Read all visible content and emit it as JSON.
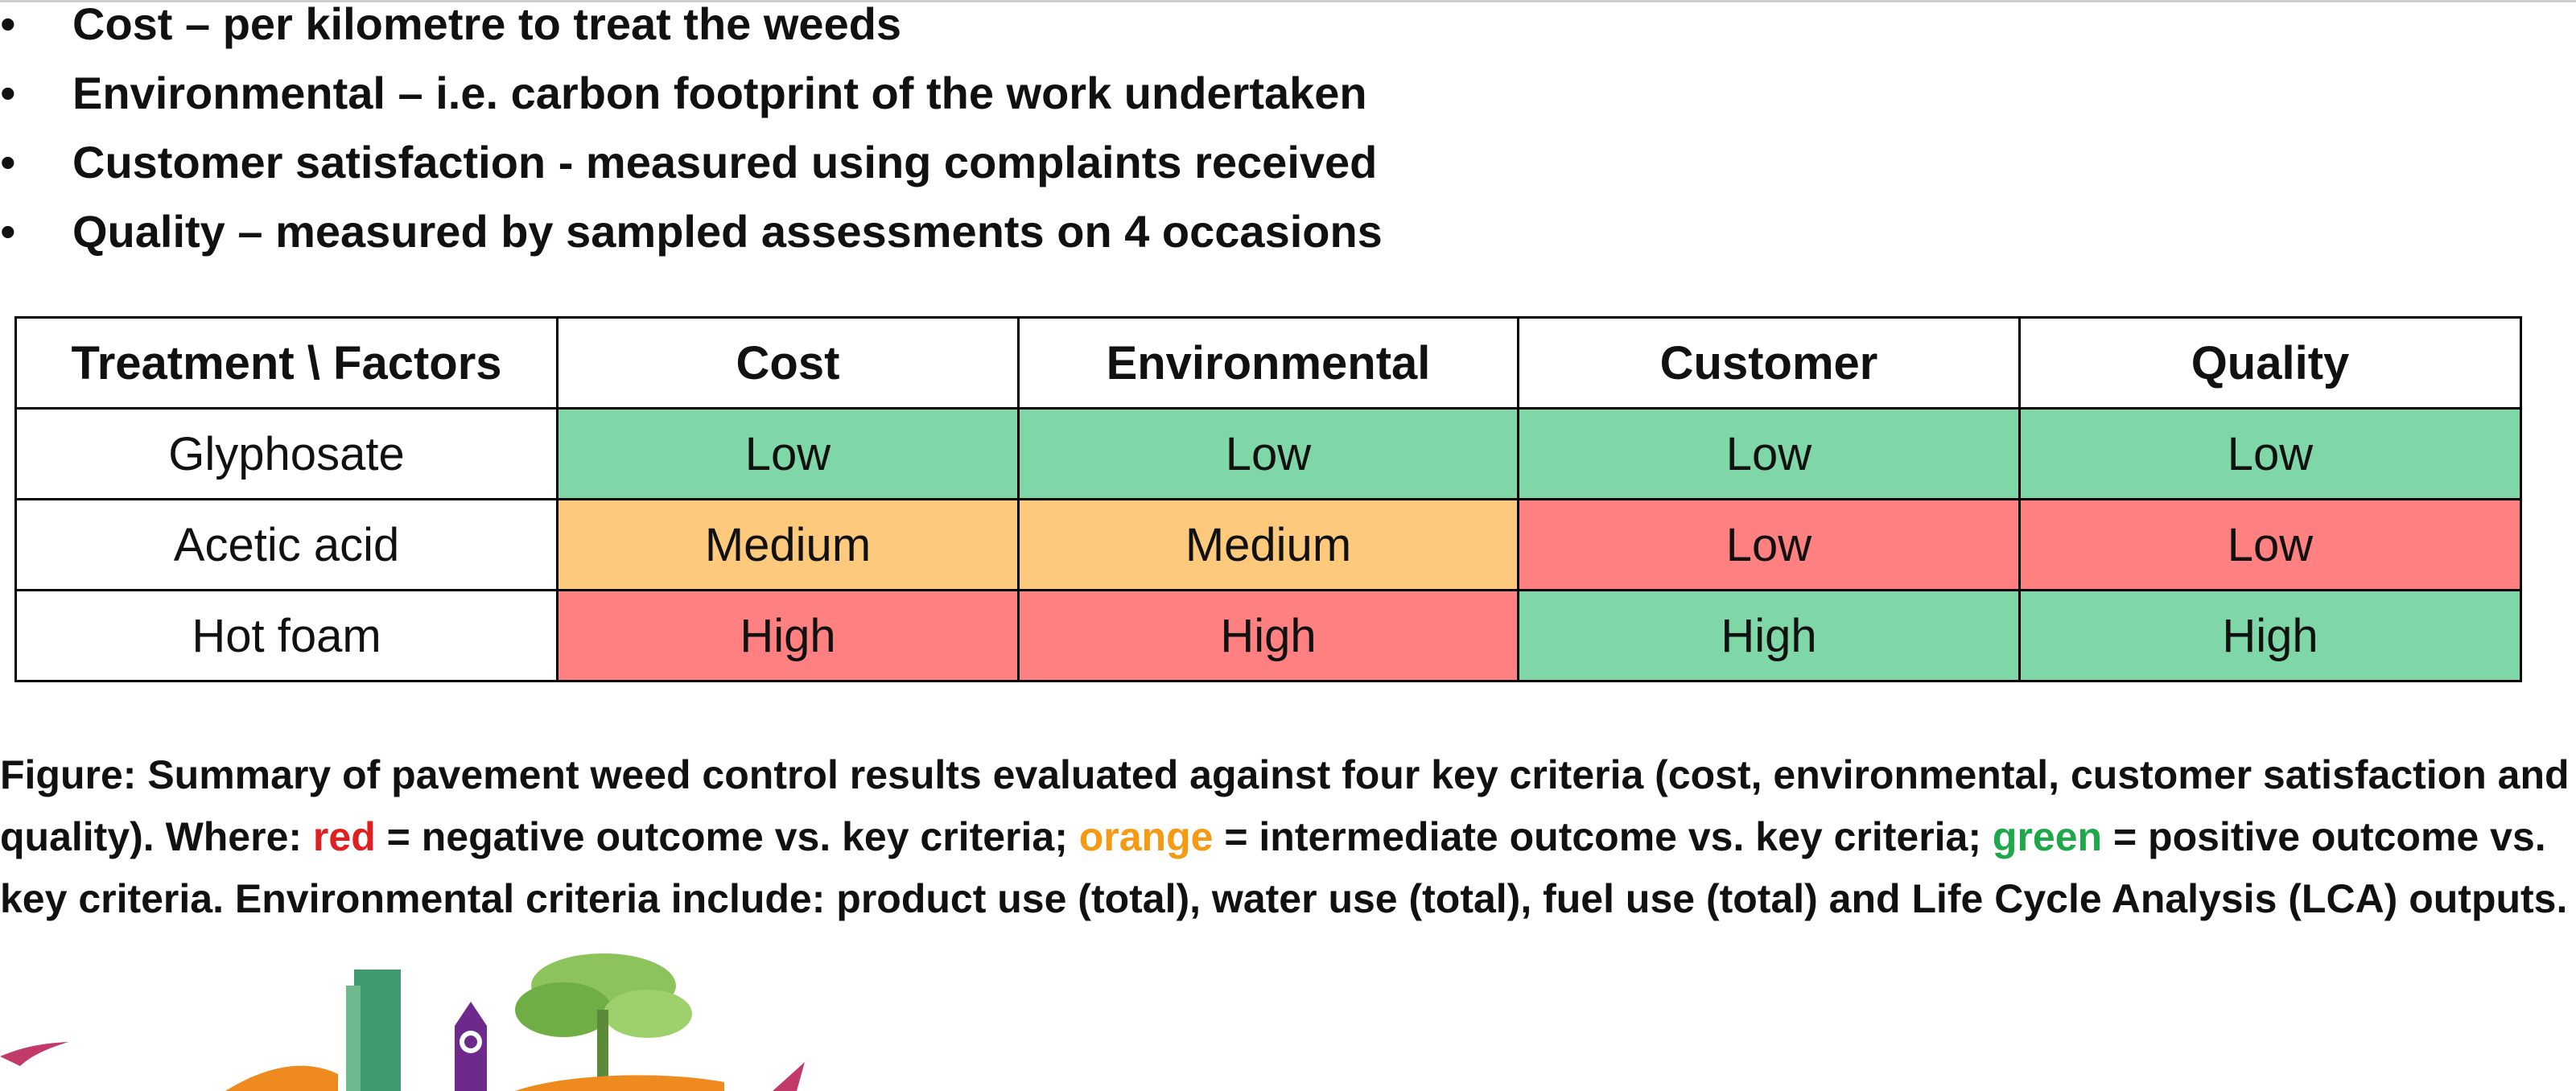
{
  "bullets": [
    "Cost – per kilometre to treat the weeds",
    "Environmental – i.e. carbon footprint of the work undertaken",
    "Customer satisfaction - measured using complaints received",
    "Quality – measured by sampled assessments on 4 occasions"
  ],
  "bullet_symbol": "•",
  "table": {
    "headers": [
      "Treatment \\ Factors",
      "Cost",
      "Environmental",
      "Customer",
      "Quality"
    ],
    "rows": [
      {
        "treatment": "Glyphosate",
        "cells": [
          {
            "value": "Low",
            "outcome": "positive"
          },
          {
            "value": "Low",
            "outcome": "positive"
          },
          {
            "value": "Low",
            "outcome": "positive"
          },
          {
            "value": "Low",
            "outcome": "positive"
          }
        ]
      },
      {
        "treatment": "Acetic acid",
        "cells": [
          {
            "value": "Medium",
            "outcome": "intermediate"
          },
          {
            "value": "Medium",
            "outcome": "intermediate"
          },
          {
            "value": "Low",
            "outcome": "negative"
          },
          {
            "value": "Low",
            "outcome": "negative"
          }
        ]
      },
      {
        "treatment": "Hot foam",
        "cells": [
          {
            "value": "High",
            "outcome": "negative"
          },
          {
            "value": "High",
            "outcome": "negative"
          },
          {
            "value": "High",
            "outcome": "positive"
          },
          {
            "value": "High",
            "outcome": "positive"
          }
        ]
      }
    ]
  },
  "colors": {
    "positive": "#7fd6a7",
    "intermediate": "#fdc97c",
    "negative": "#ff8080",
    "caption_red": "#e02020",
    "caption_orange": "#f59a12",
    "caption_green": "#1fa84a"
  },
  "caption": {
    "part1": "Figure: Summary of pavement weed control results evaluated against four key criteria (cost, environmental, customer satisfaction and quality). Where: ",
    "red_word": "red",
    "part2": " = negative outcome vs. key criteria; ",
    "orange_word": "orange",
    "part3": " = intermediate outcome vs. key criteria; ",
    "green_word": "green",
    "part4": " = positive outcome vs. key criteria. Environmental criteria include: product use (total), water use (total), fuel use (total) and Life Cycle Analysis (LCA) outputs."
  }
}
